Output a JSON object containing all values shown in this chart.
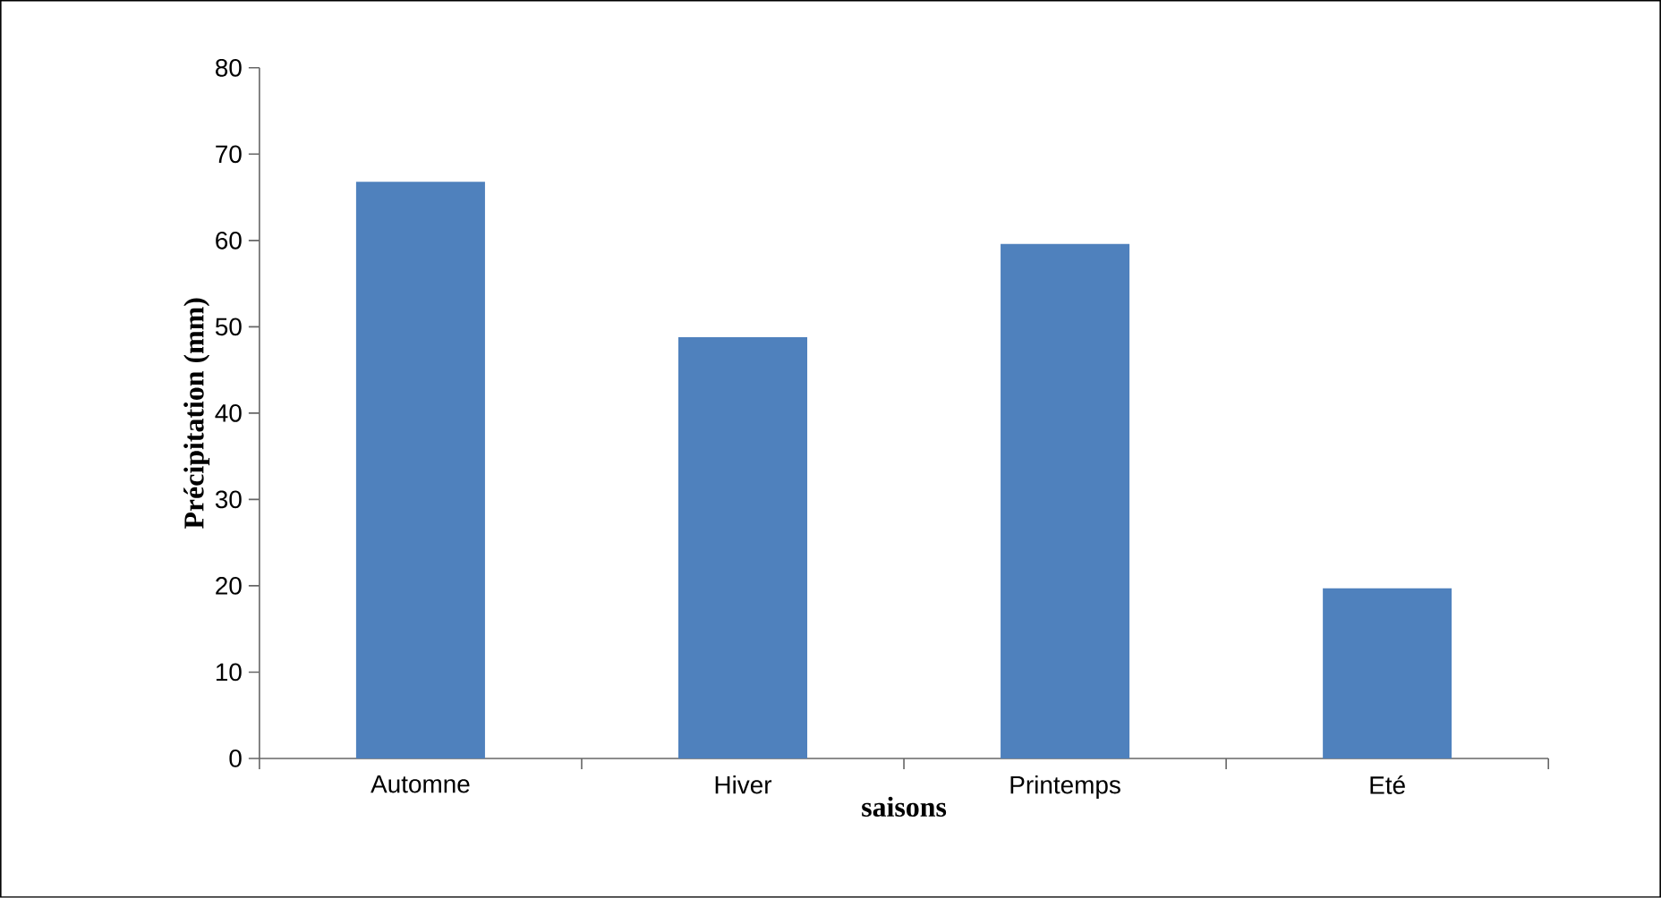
{
  "chart_data": {
    "type": "bar",
    "xlabel": "saisons",
    "ylabel": "Précipitation (mm)",
    "categories": [
      "Automne",
      "Hiver",
      "Printemps",
      "Eté"
    ],
    "values": [
      66.8,
      48.8,
      59.6,
      19.7
    ],
    "color": "#4f81bd",
    "ylim": [
      0,
      80
    ],
    "yticks": [
      0,
      10,
      20,
      30,
      40,
      50,
      60,
      70,
      80
    ],
    "grid": false
  }
}
